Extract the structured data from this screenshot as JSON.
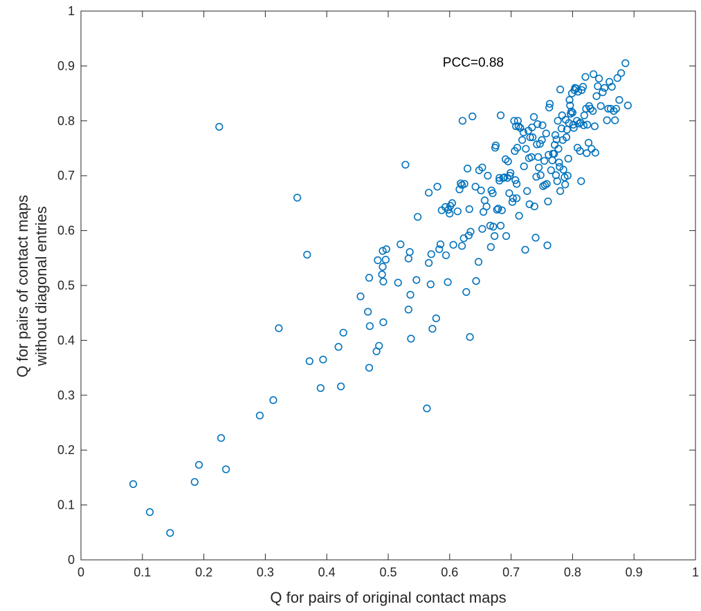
{
  "chart_data": {
    "type": "scatter",
    "xlabel": "Q for pairs of original contact maps",
    "ylabel_lines": [
      "Q for pairs of contact maps",
      "without diagonal entries"
    ],
    "xlim": [
      0,
      1
    ],
    "ylim": [
      0,
      1
    ],
    "xticks": [
      "0",
      "0.1",
      "0.2",
      "0.3",
      "0.4",
      "0.5",
      "0.6",
      "0.7",
      "0.8",
      "0.9",
      "1"
    ],
    "yticks": [
      "0",
      "0.1",
      "0.2",
      "0.3",
      "0.4",
      "0.5",
      "0.6",
      "0.7",
      "0.8",
      "0.9",
      "1"
    ],
    "annotation": {
      "text": "PCC=0.88",
      "x": 0.6,
      "y": 0.9
    },
    "grid": false,
    "marker": "open-circle",
    "marker_color": "#0072BD",
    "points": [
      [
        0.085,
        0.138
      ],
      [
        0.112,
        0.087
      ],
      [
        0.145,
        0.049
      ],
      [
        0.185,
        0.142
      ],
      [
        0.192,
        0.173
      ],
      [
        0.228,
        0.222
      ],
      [
        0.236,
        0.165
      ],
      [
        0.291,
        0.263
      ],
      [
        0.313,
        0.291
      ],
      [
        0.225,
        0.789
      ],
      [
        0.322,
        0.422
      ],
      [
        0.352,
        0.66
      ],
      [
        0.368,
        0.556
      ],
      [
        0.372,
        0.362
      ],
      [
        0.394,
        0.365
      ],
      [
        0.39,
        0.313
      ],
      [
        0.419,
        0.388
      ],
      [
        0.423,
        0.316
      ],
      [
        0.427,
        0.414
      ],
      [
        0.455,
        0.48
      ],
      [
        0.467,
        0.452
      ],
      [
        0.469,
        0.514
      ],
      [
        0.469,
        0.35
      ],
      [
        0.47,
        0.426
      ],
      [
        0.481,
        0.38
      ],
      [
        0.485,
        0.39
      ],
      [
        0.483,
        0.546
      ],
      [
        0.49,
        0.52
      ],
      [
        0.491,
        0.534
      ],
      [
        0.491,
        0.563
      ],
      [
        0.492,
        0.507
      ],
      [
        0.492,
        0.433
      ],
      [
        0.496,
        0.547
      ],
      [
        0.497,
        0.566
      ],
      [
        0.516,
        0.505
      ],
      [
        0.52,
        0.575
      ],
      [
        0.528,
        0.72
      ],
      [
        0.533,
        0.549
      ],
      [
        0.533,
        0.456
      ],
      [
        0.535,
        0.561
      ],
      [
        0.536,
        0.483
      ],
      [
        0.537,
        0.403
      ],
      [
        0.546,
        0.51
      ],
      [
        0.548,
        0.625
      ],
      [
        0.563,
        0.276
      ],
      [
        0.566,
        0.541
      ],
      [
        0.566,
        0.669
      ],
      [
        0.569,
        0.502
      ],
      [
        0.57,
        0.557
      ],
      [
        0.572,
        0.421
      ],
      [
        0.578,
        0.44
      ],
      [
        0.58,
        0.68
      ],
      [
        0.583,
        0.566
      ],
      [
        0.585,
        0.575
      ],
      [
        0.587,
        0.637
      ],
      [
        0.593,
        0.643
      ],
      [
        0.594,
        0.555
      ],
      [
        0.597,
        0.506
      ],
      [
        0.598,
        0.638
      ],
      [
        0.6,
        0.631
      ],
      [
        0.601,
        0.645
      ],
      [
        0.604,
        0.65
      ],
      [
        0.606,
        0.574
      ],
      [
        0.613,
        0.635
      ],
      [
        0.616,
        0.675
      ],
      [
        0.618,
        0.686
      ],
      [
        0.62,
        0.683
      ],
      [
        0.62,
        0.572
      ],
      [
        0.621,
        0.8
      ],
      [
        0.623,
        0.586
      ],
      [
        0.624,
        0.685
      ],
      [
        0.627,
        0.488
      ],
      [
        0.629,
        0.713
      ],
      [
        0.631,
        0.591
      ],
      [
        0.632,
        0.639
      ],
      [
        0.633,
        0.406
      ],
      [
        0.634,
        0.598
      ],
      [
        0.637,
        0.808
      ],
      [
        0.642,
        0.68
      ],
      [
        0.643,
        0.508
      ],
      [
        0.647,
        0.543
      ],
      [
        0.648,
        0.71
      ],
      [
        0.651,
        0.673
      ],
      [
        0.653,
        0.715
      ],
      [
        0.653,
        0.603
      ],
      [
        0.655,
        0.634
      ],
      [
        0.657,
        0.655
      ],
      [
        0.66,
        0.644
      ],
      [
        0.662,
        0.7
      ],
      [
        0.666,
        0.609
      ],
      [
        0.667,
        0.57
      ],
      [
        0.668,
        0.673
      ],
      [
        0.67,
        0.668
      ],
      [
        0.671,
        0.607
      ],
      [
        0.673,
        0.59
      ],
      [
        0.674,
        0.751
      ],
      [
        0.675,
        0.755
      ],
      [
        0.677,
        0.638
      ],
      [
        0.679,
        0.64
      ],
      [
        0.681,
        0.691
      ],
      [
        0.681,
        0.696
      ],
      [
        0.683,
        0.81
      ],
      [
        0.683,
        0.609
      ],
      [
        0.685,
        0.637
      ],
      [
        0.687,
        0.696
      ],
      [
        0.689,
        0.697
      ],
      [
        0.691,
        0.73
      ],
      [
        0.692,
        0.59
      ],
      [
        0.694,
        0.696
      ],
      [
        0.695,
        0.726
      ],
      [
        0.697,
        0.668
      ],
      [
        0.698,
        0.7
      ],
      [
        0.699,
        0.705
      ],
      [
        0.702,
        0.652
      ],
      [
        0.703,
        0.659
      ],
      [
        0.705,
        0.8
      ],
      [
        0.706,
        0.745
      ],
      [
        0.707,
        0.692
      ],
      [
        0.708,
        0.79
      ],
      [
        0.709,
        0.685
      ],
      [
        0.709,
        0.659
      ],
      [
        0.71,
        0.751
      ],
      [
        0.711,
        0.8
      ],
      [
        0.712,
        0.79
      ],
      [
        0.713,
        0.627
      ],
      [
        0.715,
        0.787
      ],
      [
        0.718,
        0.765
      ],
      [
        0.72,
        0.779
      ],
      [
        0.721,
        0.717
      ],
      [
        0.723,
        0.565
      ],
      [
        0.724,
        0.749
      ],
      [
        0.726,
        0.672
      ],
      [
        0.728,
        0.782
      ],
      [
        0.729,
        0.732
      ],
      [
        0.73,
        0.648
      ],
      [
        0.731,
        0.77
      ],
      [
        0.733,
        0.734
      ],
      [
        0.734,
        0.788
      ],
      [
        0.735,
        0.77
      ],
      [
        0.737,
        0.807
      ],
      [
        0.738,
        0.644
      ],
      [
        0.74,
        0.587
      ],
      [
        0.741,
        0.698
      ],
      [
        0.742,
        0.757
      ],
      [
        0.743,
        0.794
      ],
      [
        0.744,
        0.734
      ],
      [
        0.745,
        0.715
      ],
      [
        0.747,
        0.758
      ],
      [
        0.748,
        0.701
      ],
      [
        0.75,
        0.765
      ],
      [
        0.751,
        0.792
      ],
      [
        0.752,
        0.681
      ],
      [
        0.754,
        0.727
      ],
      [
        0.755,
        0.683
      ],
      [
        0.757,
        0.777
      ],
      [
        0.758,
        0.685
      ],
      [
        0.759,
        0.573
      ],
      [
        0.76,
        0.653
      ],
      [
        0.761,
        0.738
      ],
      [
        0.762,
        0.824
      ],
      [
        0.763,
        0.831
      ],
      [
        0.765,
        0.71
      ],
      [
        0.767,
        0.728
      ],
      [
        0.768,
        0.74
      ],
      [
        0.77,
        0.74
      ],
      [
        0.771,
        0.756
      ],
      [
        0.772,
        0.774
      ],
      [
        0.773,
        0.701
      ],
      [
        0.774,
        0.766
      ],
      [
        0.775,
        0.69
      ],
      [
        0.776,
        0.8
      ],
      [
        0.777,
        0.749
      ],
      [
        0.778,
        0.724
      ],
      [
        0.779,
        0.716
      ],
      [
        0.78,
        0.857
      ],
      [
        0.78,
        0.672
      ],
      [
        0.782,
        0.786
      ],
      [
        0.783,
        0.81
      ],
      [
        0.784,
        0.765
      ],
      [
        0.785,
        0.711
      ],
      [
        0.787,
        0.697
      ],
      [
        0.788,
        0.684
      ],
      [
        0.789,
        0.802
      ],
      [
        0.79,
        0.77
      ],
      [
        0.791,
        0.784
      ],
      [
        0.792,
        0.7
      ],
      [
        0.793,
        0.731
      ],
      [
        0.794,
        0.796
      ],
      [
        0.795,
        0.838
      ],
      [
        0.796,
        0.828
      ],
      [
        0.797,
        0.813
      ],
      [
        0.798,
        0.817
      ],
      [
        0.799,
        0.85
      ],
      [
        0.8,
        0.815
      ],
      [
        0.801,
        0.793
      ],
      [
        0.802,
        0.787
      ],
      [
        0.803,
        0.856
      ],
      [
        0.804,
        0.86
      ],
      [
        0.806,
        0.859
      ],
      [
        0.807,
        0.8
      ],
      [
        0.808,
        0.751
      ],
      [
        0.809,
        0.853
      ],
      [
        0.811,
        0.795
      ],
      [
        0.812,
        0.745
      ],
      [
        0.813,
        0.797
      ],
      [
        0.814,
        0.69
      ],
      [
        0.815,
        0.856
      ],
      [
        0.817,
        0.862
      ],
      [
        0.818,
        0.792
      ],
      [
        0.819,
        0.81
      ],
      [
        0.821,
        0.88
      ],
      [
        0.822,
        0.822
      ],
      [
        0.823,
        0.741
      ],
      [
        0.824,
        0.793
      ],
      [
        0.826,
        0.76
      ],
      [
        0.827,
        0.827
      ],
      [
        0.829,
        0.822
      ],
      [
        0.831,
        0.749
      ],
      [
        0.833,
        0.818
      ],
      [
        0.834,
        0.885
      ],
      [
        0.836,
        0.79
      ],
      [
        0.837,
        0.742
      ],
      [
        0.839,
        0.845
      ],
      [
        0.841,
        0.863
      ],
      [
        0.843,
        0.877
      ],
      [
        0.846,
        0.827
      ],
      [
        0.849,
        0.852
      ],
      [
        0.852,
        0.86
      ],
      [
        0.856,
        0.801
      ],
      [
        0.858,
        0.822
      ],
      [
        0.86,
        0.871
      ],
      [
        0.862,
        0.822
      ],
      [
        0.864,
        0.862
      ],
      [
        0.867,
        0.818
      ],
      [
        0.869,
        0.801
      ],
      [
        0.871,
        0.822
      ],
      [
        0.873,
        0.878
      ],
      [
        0.876,
        0.838
      ],
      [
        0.879,
        0.887
      ],
      [
        0.886,
        0.905
      ],
      [
        0.89,
        0.828
      ]
    ]
  }
}
